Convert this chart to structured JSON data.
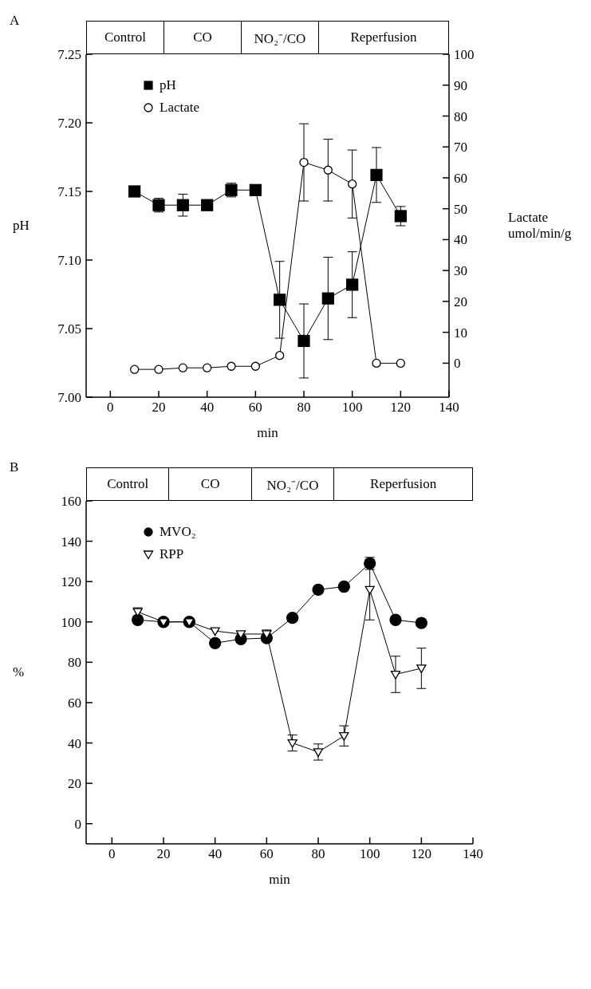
{
  "chart_data": [
    {
      "type": "line",
      "title": "A",
      "xlabel": "min",
      "ylabel": "pH",
      "y2label": "Lactate umol/min/g",
      "annotations": [
        "Control",
        "CO",
        "NO₂⁻/CO",
        "Reperfusion"
      ],
      "x": [
        10,
        20,
        30,
        40,
        50,
        60,
        70,
        80,
        90,
        100,
        110,
        120
      ],
      "series": [
        {
          "name": "pH",
          "color": "#000000",
          "marker": "square",
          "values": [
            7.15,
            7.14,
            7.14,
            7.14,
            7.151,
            7.151,
            7.071,
            7.041,
            7.072,
            7.082,
            7.162,
            7.132
          ],
          "errors": [
            null,
            0.005,
            0.008,
            null,
            0.005,
            null,
            0.028,
            0.027,
            0.03,
            0.024,
            0.02,
            0.007
          ]
        },
        {
          "name": "Lactate",
          "color": "#000000",
          "marker": "circle",
          "axis": "y2",
          "values": [
            -2,
            -2,
            -1.5,
            -1.5,
            -1,
            -1,
            2.5,
            65,
            62.5,
            58,
            0,
            0
          ],
          "errors": [
            null,
            null,
            null,
            null,
            null,
            null,
            null,
            12.5,
            10,
            11,
            null,
            null
          ]
        }
      ],
      "xlim": [
        -10,
        140
      ],
      "xticks": [
        0,
        20,
        40,
        60,
        80,
        100,
        120,
        140
      ],
      "ylim": [
        7,
        7.25
      ],
      "yticks": [
        {
          "value": 7,
          "label": "7.00"
        },
        {
          "value": 7.05,
          "label": "7.05"
        },
        {
          "value": 7.1,
          "label": "7.10"
        },
        {
          "value": 7.15,
          "label": "7.15"
        },
        {
          "value": 7.2,
          "label": "7.20"
        },
        {
          "value": 7.25,
          "label": "7.25"
        }
      ],
      "y2lim": [
        -11,
        100
      ],
      "y2ticks": [
        0,
        10,
        20,
        30,
        40,
        50,
        60,
        70,
        80,
        90,
        100
      ],
      "grid": false,
      "legend": "top left",
      "line_style": "solid"
    },
    {
      "type": "line",
      "title": "B",
      "xlabel": "min",
      "ylabel": "%",
      "annotations": [
        "Control",
        "CO",
        "NO₂⁻/CO",
        "Reperfusion"
      ],
      "x": [
        10,
        20,
        30,
        40,
        50,
        60,
        70,
        80,
        90,
        100,
        110,
        120
      ],
      "series": [
        {
          "name": "MVO₂",
          "color": "#000000",
          "marker": "circle",
          "values": [
            101,
            100,
            100,
            89.5,
            91.5,
            92,
            102,
            116,
            117.5,
            129,
            101,
            99.5
          ],
          "errors": [
            null,
            null,
            null,
            null,
            null,
            null,
            null,
            null,
            null,
            3,
            null,
            null
          ]
        },
        {
          "name": "RPP",
          "color": "#000000",
          "marker": "triangle",
          "values": [
            105,
            100,
            100,
            95.5,
            94,
            94,
            40,
            35.5,
            43.5,
            116,
            74,
            77
          ],
          "errors": [
            2,
            null,
            null,
            null,
            null,
            2,
            4,
            4,
            5,
            15,
            9,
            10
          ]
        }
      ],
      "xlim": [
        -10,
        140
      ],
      "xticks": [
        0,
        20,
        40,
        60,
        80,
        100,
        120,
        140
      ],
      "ylim": [
        -10,
        160
      ],
      "yticks": [
        0,
        20,
        40,
        60,
        80,
        100,
        120,
        140,
        160
      ],
      "grid": false,
      "legend": "top left",
      "line_style": "solid"
    }
  ]
}
